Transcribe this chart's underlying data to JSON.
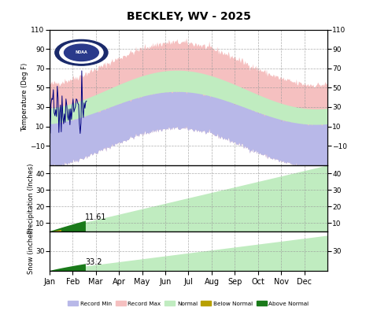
{
  "title": "BECKLEY, WV - 2025",
  "months": [
    "Jan",
    "Feb",
    "Mar",
    "Apr",
    "May",
    "Jun",
    "Jul",
    "Aug",
    "Sep",
    "Oct",
    "Nov",
    "Dec"
  ],
  "temp_ylim": [
    -30,
    110
  ],
  "temp_yticks": [
    -10,
    10,
    30,
    50,
    70,
    90,
    110
  ],
  "precip_ylim": [
    5,
    45
  ],
  "precip_yticks": [
    10,
    20,
    30,
    40
  ],
  "snow_ylim": [
    35,
    25
  ],
  "snow_yticks": [
    30
  ],
  "background_color": "#ffffff",
  "grid_color": "#999999",
  "record_min_color": "#b8b8e8",
  "record_max_color": "#f5c0c0",
  "normal_color": "#c0ecc0",
  "below_normal_color": "#b8a000",
  "above_normal_color": "#1a7a1a",
  "obs_line_color": "#000080",
  "precip_label": "11.61",
  "snow_label": "33.2"
}
